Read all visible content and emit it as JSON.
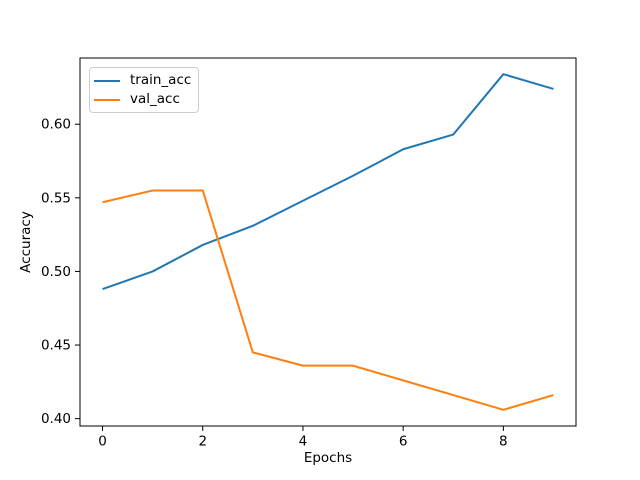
{
  "chart_data": {
    "type": "line",
    "title": "",
    "xlabel": "Epochs",
    "ylabel": "Accuracy",
    "x": [
      0,
      1,
      2,
      3,
      4,
      5,
      6,
      7,
      8,
      9
    ],
    "series": [
      {
        "name": "train_acc",
        "color": "#1f77b4",
        "values": [
          0.488,
          0.5,
          0.518,
          0.531,
          0.548,
          0.565,
          0.583,
          0.593,
          0.634,
          0.624
        ]
      },
      {
        "name": "val_acc",
        "color": "#ff7f0e",
        "values": [
          0.547,
          0.555,
          0.555,
          0.445,
          0.436,
          0.436,
          0.426,
          0.416,
          0.406,
          0.416
        ]
      }
    ],
    "xlim": [
      -0.45,
      9.45
    ],
    "ylim": [
      0.395,
      0.645
    ],
    "xticks": [
      0,
      2,
      4,
      6,
      8
    ],
    "xtick_labels": [
      "0",
      "2",
      "4",
      "6",
      "8"
    ],
    "yticks": [
      0.4,
      0.45,
      0.5,
      0.55,
      0.6
    ],
    "ytick_labels": [
      "0.40",
      "0.45",
      "0.50",
      "0.55",
      "0.60"
    ],
    "grid": false,
    "legend_position": "upper left",
    "line_width": 2,
    "spine_color": "#000000",
    "background": "#ffffff"
  }
}
